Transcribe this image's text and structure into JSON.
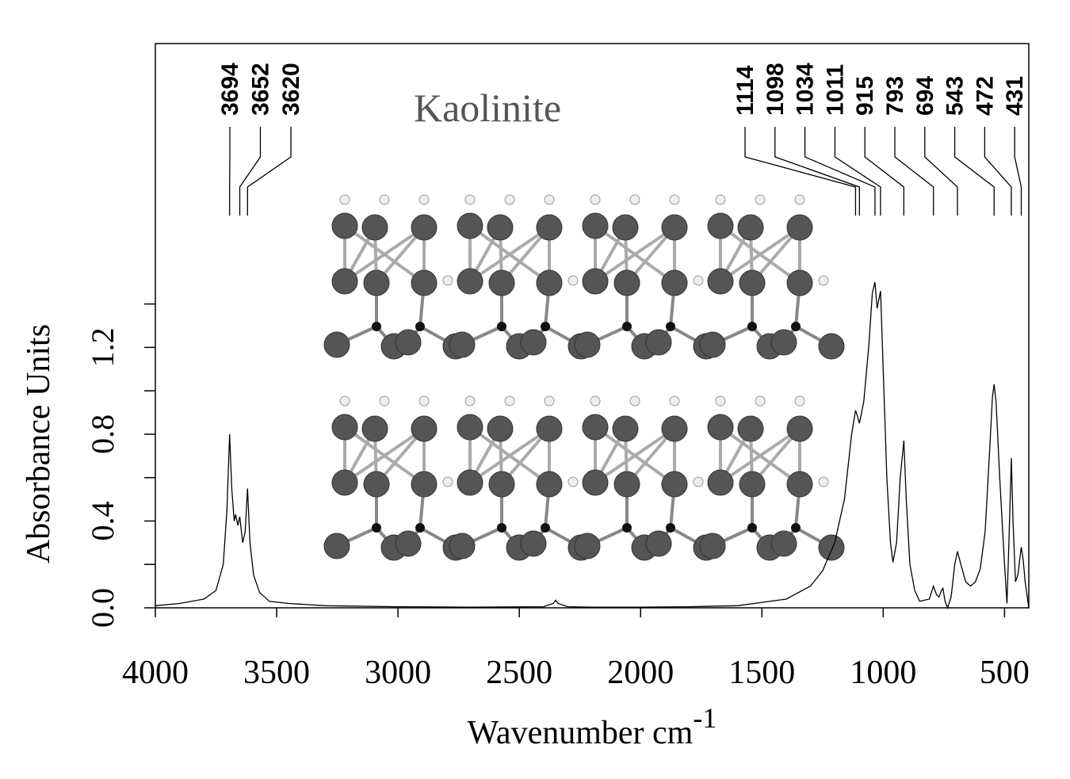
{
  "chart_data": {
    "type": "line",
    "title": "Kaolinite",
    "x_label": "Wavenumber cm",
    "x_label_superscript": "-1",
    "y_label": "Absorbance Units",
    "x": [
      4000,
      3900,
      3800,
      3750,
      3720,
      3705,
      3694,
      3685,
      3675,
      3669,
      3660,
      3652,
      3640,
      3630,
      3620,
      3610,
      3595,
      3570,
      3530,
      3450,
      3300,
      3000,
      2700,
      2400,
      2360,
      2350,
      2340,
      2300,
      2200,
      2000,
      1800,
      1600,
      1400,
      1300,
      1250,
      1200,
      1160,
      1130,
      1114,
      1105,
      1098,
      1080,
      1060,
      1045,
      1034,
      1025,
      1018,
      1011,
      1000,
      985,
      970,
      960,
      945,
      930,
      915,
      905,
      890,
      870,
      850,
      810,
      793,
      780,
      770,
      760,
      754,
      745,
      735,
      720,
      705,
      694,
      680,
      660,
      640,
      620,
      600,
      580,
      560,
      550,
      543,
      535,
      520,
      500,
      490,
      482,
      472,
      465,
      455,
      445,
      431,
      423,
      415,
      400
    ],
    "values": [
      0.01,
      0.02,
      0.04,
      0.08,
      0.2,
      0.45,
      0.8,
      0.55,
      0.4,
      0.43,
      0.38,
      0.42,
      0.3,
      0.35,
      0.55,
      0.3,
      0.15,
      0.07,
      0.03,
      0.02,
      0.01,
      0.005,
      0.003,
      0.005,
      0.02,
      0.035,
      0.02,
      0.005,
      0.003,
      0.003,
      0.005,
      0.01,
      0.04,
      0.1,
      0.17,
      0.3,
      0.5,
      0.8,
      0.91,
      0.88,
      0.85,
      0.95,
      1.2,
      1.45,
      1.5,
      1.38,
      1.42,
      1.46,
      1.1,
      0.6,
      0.3,
      0.21,
      0.3,
      0.6,
      0.77,
      0.5,
      0.2,
      0.08,
      0.03,
      0.04,
      0.1,
      0.06,
      0.05,
      0.08,
      0.09,
      0.03,
      0.0,
      0.05,
      0.2,
      0.26,
      0.2,
      0.12,
      0.1,
      0.12,
      0.18,
      0.35,
      0.75,
      0.97,
      1.03,
      0.95,
      0.6,
      0.2,
      0.02,
      0.3,
      0.69,
      0.4,
      0.12,
      0.15,
      0.28,
      0.22,
      0.12,
      0.0
    ],
    "color": "#000000",
    "xlim": [
      4000,
      400
    ],
    "xticks": [
      4000,
      3500,
      3000,
      2500,
      2000,
      1500,
      1000,
      500
    ],
    "ylim": [
      0,
      2.6
    ],
    "yticks": [
      {
        "value": 0,
        "label": "0.0"
      },
      {
        "value": 0.4,
        "label": "0.4"
      },
      {
        "value": 0.8,
        "label": "0.8"
      },
      {
        "value": 1.2,
        "label": "1.2"
      }
    ],
    "yminor_ticks": [
      0.2,
      0.6,
      1.0,
      1.4
    ],
    "peak_labels": [
      3694,
      3652,
      3620,
      1114,
      1098,
      1034,
      1011,
      915,
      793,
      694,
      543,
      472,
      431
    ]
  }
}
